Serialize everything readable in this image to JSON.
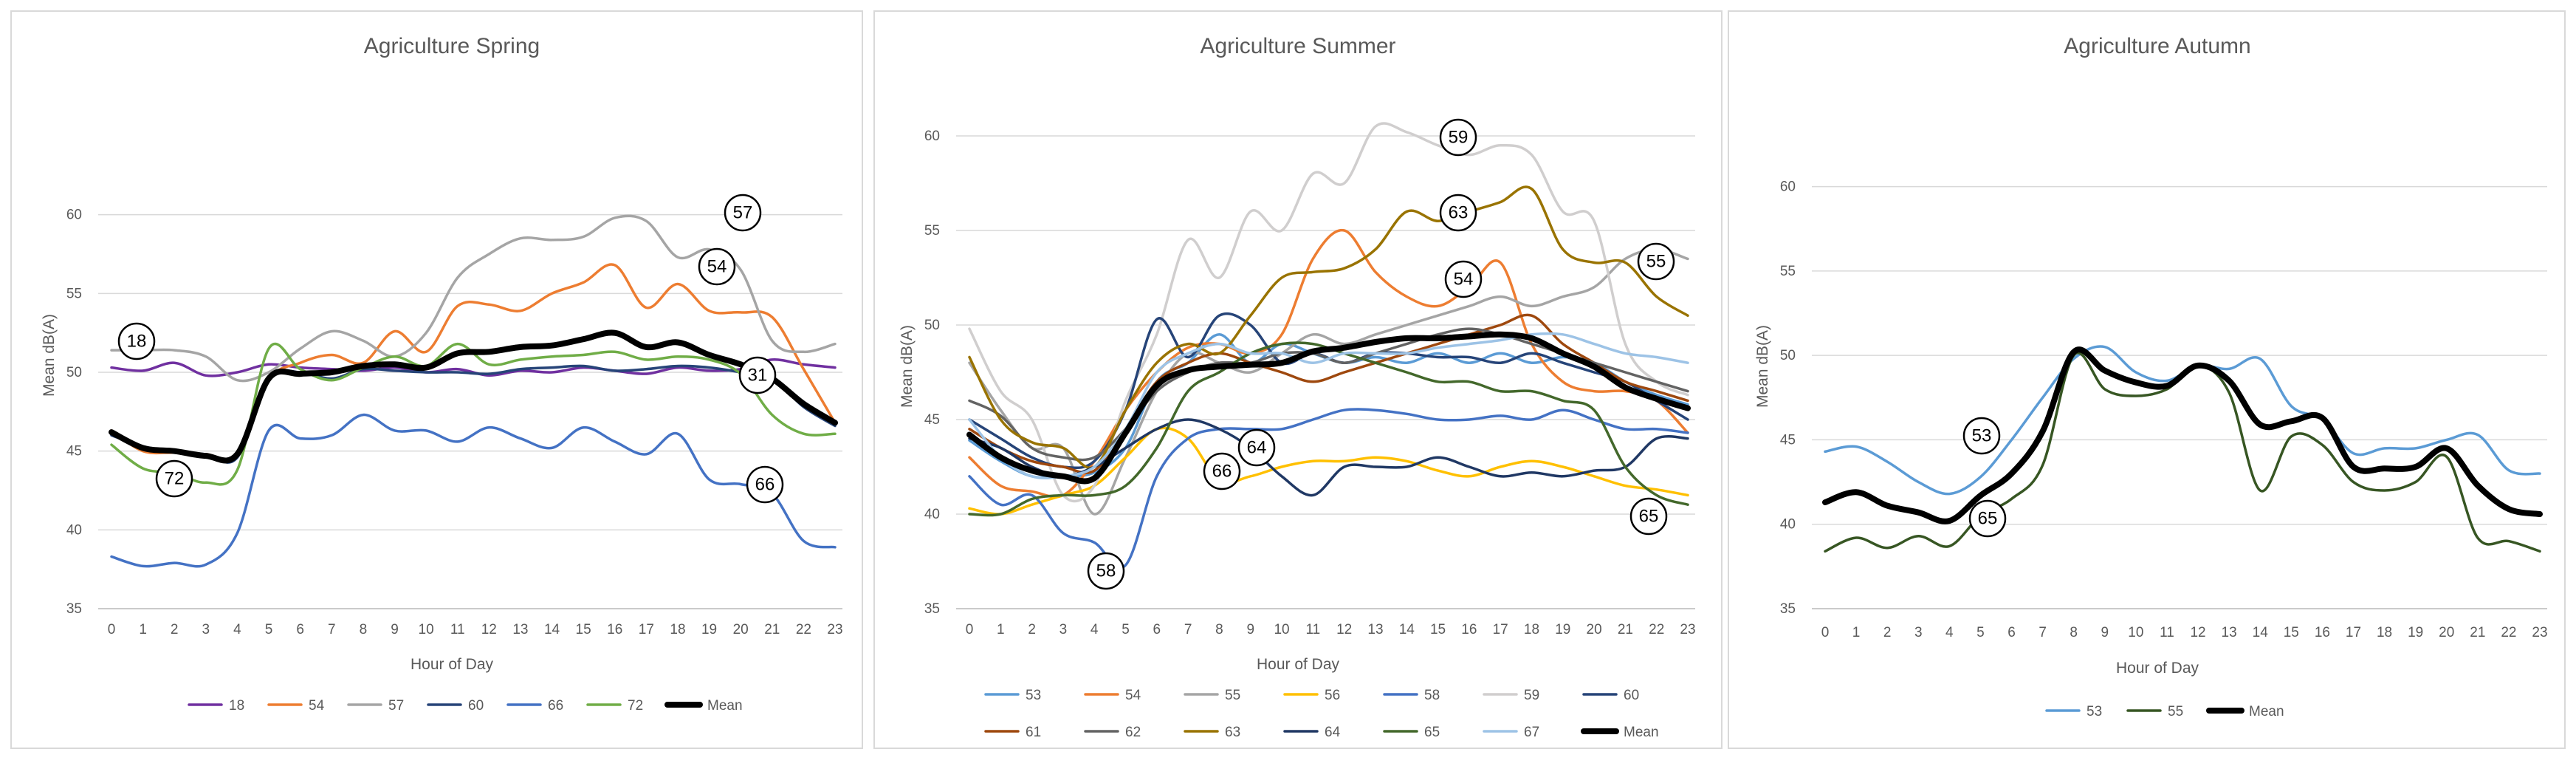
{
  "chart_data": [
    {
      "type": "line",
      "title": "Agriculture Spring",
      "xlabel": "Hour of Day",
      "ylabel": "Mean dB(A)",
      "ylim": [
        35,
        65
      ],
      "yticks": [
        35,
        40,
        45,
        50,
        55,
        60
      ],
      "x": [
        0,
        1,
        2,
        3,
        4,
        5,
        6,
        7,
        8,
        9,
        10,
        11,
        12,
        13,
        14,
        15,
        16,
        17,
        18,
        19,
        20,
        21,
        22,
        23
      ],
      "series": [
        {
          "name": "18",
          "color": "#7030a0",
          "values": [
            50.3,
            50.1,
            50.6,
            49.8,
            50.0,
            50.5,
            50.3,
            50.2,
            50.1,
            50.3,
            50.0,
            50.2,
            49.8,
            50.1,
            50.0,
            50.3,
            50.1,
            49.9,
            50.3,
            50.1,
            50.2,
            50.8,
            50.5,
            50.3
          ]
        },
        {
          "name": "54",
          "color": "#ed7d31",
          "values": [
            46.3,
            45.0,
            44.9,
            44.8,
            44.8,
            49.5,
            50.6,
            51.1,
            50.6,
            52.6,
            51.3,
            54.2,
            54.3,
            53.9,
            55.0,
            55.7,
            56.8,
            54.1,
            55.6,
            53.9,
            53.8,
            53.5,
            50.2,
            46.8
          ]
        },
        {
          "name": "57",
          "color": "#a5a5a5",
          "values": [
            51.4,
            51.4,
            51.4,
            51.0,
            49.5,
            50.0,
            51.5,
            52.6,
            52.0,
            51.0,
            52.5,
            56.0,
            57.5,
            58.5,
            58.4,
            58.6,
            59.8,
            59.6,
            57.3,
            57.8,
            56.5,
            52.0,
            51.3,
            51.8
          ]
        },
        {
          "name": "60",
          "color": "#264478",
          "values": [
            46.0,
            45.3,
            45.0,
            44.8,
            44.6,
            49.6,
            50.0,
            49.6,
            50.2,
            50.1,
            50.0,
            50.0,
            49.9,
            50.2,
            50.3,
            50.4,
            50.1,
            50.2,
            50.4,
            50.3,
            50.0,
            49.6,
            47.8,
            46.6
          ]
        },
        {
          "name": "66",
          "color": "#4472c4",
          "values": [
            38.3,
            37.7,
            37.9,
            37.8,
            39.8,
            46.3,
            45.8,
            46.0,
            47.3,
            46.3,
            46.3,
            45.6,
            46.5,
            45.8,
            45.2,
            46.5,
            45.6,
            44.8,
            46.1,
            43.2,
            42.9,
            42.3,
            39.3,
            38.9
          ]
        },
        {
          "name": "72",
          "color": "#70ad47",
          "values": [
            45.4,
            43.9,
            43.6,
            43.0,
            43.8,
            51.5,
            50.2,
            49.5,
            50.3,
            51.0,
            50.4,
            51.8,
            50.5,
            50.8,
            51.0,
            51.1,
            51.3,
            50.8,
            51.0,
            50.8,
            49.9,
            47.3,
            46.1,
            46.1
          ]
        },
        {
          "name": "Mean",
          "color": "#000000",
          "values": [
            46.2,
            45.2,
            45.0,
            44.7,
            44.8,
            49.6,
            49.9,
            50.0,
            50.4,
            50.5,
            50.3,
            51.2,
            51.3,
            51.6,
            51.7,
            52.1,
            52.5,
            51.6,
            51.9,
            51.1,
            50.5,
            49.6,
            48.0,
            46.8
          ]
        }
      ],
      "annotations": [
        "18",
        "57",
        "54",
        "31",
        "72",
        "66"
      ]
    },
    {
      "type": "line",
      "title": "Agriculture Summer",
      "xlabel": "Hour of Day",
      "ylabel": "Mean dB(A)",
      "ylim": [
        35,
        60
      ],
      "yticks": [
        35,
        40,
        45,
        50,
        55,
        60
      ],
      "x": [
        0,
        1,
        2,
        3,
        4,
        5,
        6,
        7,
        8,
        9,
        10,
        11,
        12,
        13,
        14,
        15,
        16,
        17,
        18,
        19,
        20,
        21,
        22,
        23
      ],
      "series": [
        {
          "name": "53",
          "color": "#5b9bd5",
          "values": [
            43.9,
            42.8,
            42.0,
            42.0,
            42.2,
            43.5,
            47.0,
            48.0,
            49.5,
            48.0,
            49.0,
            48.5,
            48.0,
            48.3,
            48.0,
            48.5,
            48.0,
            48.5,
            48.0,
            48.3,
            48.0,
            47.0,
            46.3,
            45.8
          ]
        },
        {
          "name": "54",
          "color": "#ed7d31",
          "values": [
            43.0,
            41.5,
            41.2,
            41.0,
            42.8,
            45.5,
            47.5,
            48.8,
            49.0,
            48.5,
            49.5,
            53.5,
            55.0,
            52.8,
            51.5,
            51.0,
            52.0,
            53.3,
            49.0,
            47.0,
            46.5,
            46.5,
            46.0,
            44.3
          ]
        },
        {
          "name": "55",
          "color": "#a5a5a5",
          "values": [
            48.0,
            45.5,
            43.5,
            43.5,
            40.0,
            43.0,
            46.5,
            48.5,
            48.0,
            47.5,
            48.5,
            49.5,
            49.0,
            49.5,
            50.0,
            50.5,
            51.0,
            51.5,
            51.0,
            51.5,
            52.0,
            53.5,
            54.0,
            53.5
          ]
        },
        {
          "name": "56",
          "color": "#ffc000",
          "values": [
            40.3,
            40.0,
            40.5,
            41.0,
            41.5,
            43.0,
            44.5,
            44.0,
            41.8,
            42.0,
            42.5,
            42.8,
            42.8,
            43.0,
            42.8,
            42.3,
            42.0,
            42.5,
            42.8,
            42.5,
            42.0,
            41.5,
            41.3,
            41.0
          ]
        },
        {
          "name": "58",
          "color": "#4472c4",
          "values": [
            42.0,
            40.5,
            41.0,
            39.0,
            38.5,
            37.3,
            42.0,
            44.0,
            44.5,
            44.5,
            44.5,
            45.0,
            45.5,
            45.5,
            45.3,
            45.0,
            45.0,
            45.2,
            45.0,
            45.5,
            45.0,
            44.5,
            44.5,
            44.3
          ]
        },
        {
          "name": "59",
          "color": "#d0cece",
          "values": [
            49.8,
            46.5,
            45.0,
            41.0,
            41.5,
            46.0,
            49.5,
            54.5,
            52.5,
            56.0,
            55.0,
            58.0,
            57.5,
            60.5,
            60.2,
            59.5,
            59.0,
            59.5,
            59.0,
            56.0,
            55.5,
            49.0,
            47.0,
            46.3
          ]
        },
        {
          "name": "60",
          "color": "#264478",
          "values": [
            45.0,
            44.0,
            43.0,
            42.5,
            42.8,
            45.5,
            50.3,
            48.3,
            50.5,
            50.0,
            48.0,
            48.5,
            48.0,
            48.5,
            48.5,
            48.3,
            48.3,
            48.0,
            48.5,
            48.0,
            47.5,
            47.0,
            46.0,
            45.0
          ]
        },
        {
          "name": "61",
          "color": "#9e480e",
          "values": [
            44.5,
            43.5,
            42.8,
            42.5,
            42.3,
            44.5,
            47.0,
            48.0,
            48.5,
            48.0,
            47.5,
            47.0,
            47.5,
            48.0,
            48.5,
            49.0,
            49.5,
            50.0,
            50.5,
            49.0,
            48.0,
            47.0,
            46.5,
            46.0
          ]
        },
        {
          "name": "62",
          "color": "#636363",
          "values": [
            46.0,
            45.2,
            43.5,
            43.0,
            43.0,
            44.5,
            46.5,
            47.5,
            48.0,
            48.0,
            48.5,
            48.5,
            48.0,
            48.5,
            49.0,
            49.5,
            49.8,
            49.5,
            49.0,
            48.5,
            48.0,
            47.5,
            47.0,
            46.5
          ]
        },
        {
          "name": "63",
          "color": "#997300",
          "values": [
            48.3,
            45.0,
            43.8,
            43.5,
            42.5,
            45.5,
            48.0,
            49.0,
            48.5,
            50.5,
            52.5,
            52.8,
            53.0,
            54.0,
            56.0,
            55.5,
            56.0,
            56.5,
            57.2,
            54.0,
            53.3,
            53.3,
            51.5,
            50.5
          ]
        },
        {
          "name": "64",
          "color": "#203864",
          "values": [
            44.0,
            43.5,
            42.5,
            42.0,
            42.5,
            43.5,
            44.5,
            45.0,
            44.5,
            43.5,
            42.0,
            41.0,
            42.5,
            42.5,
            42.5,
            43.0,
            42.5,
            42.0,
            42.2,
            42.0,
            42.3,
            42.5,
            44.0,
            44.0
          ]
        },
        {
          "name": "65",
          "color": "#43682b",
          "values": [
            40.0,
            40.0,
            40.8,
            41.0,
            41.0,
            41.5,
            43.5,
            46.5,
            47.5,
            48.5,
            49.0,
            49.0,
            48.5,
            48.0,
            47.5,
            47.0,
            47.0,
            46.5,
            46.5,
            46.0,
            45.5,
            42.5,
            41.0,
            40.5
          ]
        },
        {
          "name": "67",
          "color": "#9dc3e6",
          "values": [
            45.0,
            43.0,
            42.0,
            42.0,
            42.5,
            44.5,
            47.5,
            48.5,
            49.0,
            48.5,
            48.5,
            48.0,
            48.5,
            48.5,
            48.5,
            48.8,
            49.0,
            49.2,
            49.5,
            49.5,
            49.0,
            48.5,
            48.3,
            48.0
          ]
        },
        {
          "name": "Mean",
          "color": "#000000",
          "values": [
            44.2,
            43.0,
            42.3,
            42.0,
            41.9,
            44.3,
            46.8,
            47.6,
            47.8,
            47.9,
            48.0,
            48.6,
            48.8,
            49.1,
            49.3,
            49.3,
            49.4,
            49.5,
            49.3,
            48.5,
            47.8,
            46.7,
            46.1,
            45.6
          ]
        }
      ],
      "annotations": [
        "59",
        "63",
        "54",
        "55",
        "64",
        "65",
        "58",
        "66"
      ]
    },
    {
      "type": "line",
      "title": "Agriculture Autumn",
      "xlabel": "Hour of Day",
      "ylabel": "Mean dB(A)",
      "ylim": [
        35,
        63
      ],
      "yticks": [
        35,
        40,
        45,
        50,
        55,
        60
      ],
      "x": [
        0,
        1,
        2,
        3,
        4,
        5,
        6,
        7,
        8,
        9,
        10,
        11,
        12,
        13,
        14,
        15,
        16,
        17,
        18,
        19,
        20,
        21,
        22,
        23
      ],
      "series": [
        {
          "name": "53",
          "color": "#5b9bd5",
          "values": [
            44.3,
            44.6,
            43.7,
            42.5,
            41.8,
            42.8,
            45.0,
            47.5,
            49.8,
            50.5,
            49.0,
            48.5,
            49.4,
            49.2,
            49.8,
            47.0,
            46.2,
            44.2,
            44.5,
            44.5,
            45.0,
            45.3,
            43.2,
            43.0
          ]
        },
        {
          "name": "55",
          "color": "#375623",
          "values": [
            38.4,
            39.2,
            38.6,
            39.3,
            38.7,
            40.5,
            41.5,
            43.5,
            50.0,
            48.0,
            47.6,
            48.0,
            49.4,
            47.8,
            42.0,
            45.2,
            44.7,
            42.5,
            42.0,
            42.5,
            44.0,
            39.2,
            39.0,
            38.4
          ]
        },
        {
          "name": "Mean",
          "color": "#000000",
          "values": [
            41.3,
            41.9,
            41.1,
            40.7,
            40.2,
            41.7,
            43.0,
            45.5,
            50.2,
            49.1,
            48.4,
            48.2,
            49.4,
            48.5,
            45.9,
            46.1,
            46.3,
            43.4,
            43.3,
            43.4,
            44.5,
            42.3,
            40.9,
            40.6
          ]
        }
      ],
      "annotations": [
        "53",
        "65"
      ]
    }
  ]
}
